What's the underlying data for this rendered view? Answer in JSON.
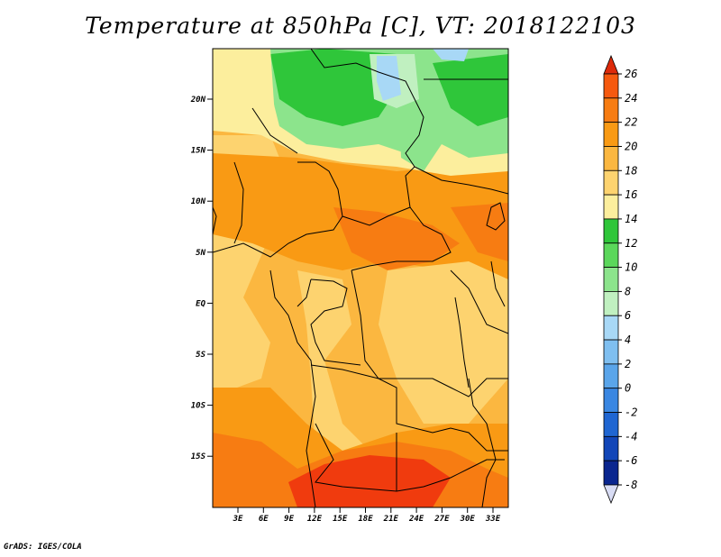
{
  "title": "Temperature at 850hPa [C], VT: 2018122103",
  "credit": "GrADS: IGES/COLA",
  "map": {
    "lat_labels": [
      "20N",
      "15N",
      "10N",
      "5N",
      "EQ",
      "5S",
      "10S",
      "15S"
    ],
    "lon_labels": [
      "3E",
      "6E",
      "9E",
      "12E",
      "15E",
      "18E",
      "21E",
      "24E",
      "27E",
      "30E",
      "33E"
    ]
  },
  "colorbar": {
    "levels": [
      "26",
      "24",
      "22",
      "20",
      "18",
      "16",
      "14",
      "12",
      "10",
      "8",
      "6",
      "4",
      "2",
      "0",
      "-2",
      "-4",
      "-6",
      "-8"
    ],
    "colors": [
      "#f03b0e",
      "#f5590f",
      "#f77c12",
      "#f99a14",
      "#fbb740",
      "#fdd36f",
      "#fcee9d",
      "#2fc63a",
      "#5bd75b",
      "#8ce48c",
      "#c0f0c0",
      "#a8d8f6",
      "#7fbff0",
      "#5aa5ea",
      "#3a87e2",
      "#1f66d2",
      "#1246b8",
      "#0a268f",
      "#06106a"
    ],
    "top_color": "#dd2a0a",
    "bottom_color": "#d8dcf4"
  },
  "palette": {
    "hot": "#f03b0e",
    "warm": "#f77c12",
    "orange": "#f99a14",
    "light_orange": "#fbb740",
    "yellow": "#fdd36f",
    "pale": "#fcee9d",
    "green": "#2fc63a",
    "mid_green": "#5bd75b",
    "light_green": "#8ce48c",
    "pale_green": "#c0f0c0",
    "pale_blue": "#a8d8f6"
  }
}
